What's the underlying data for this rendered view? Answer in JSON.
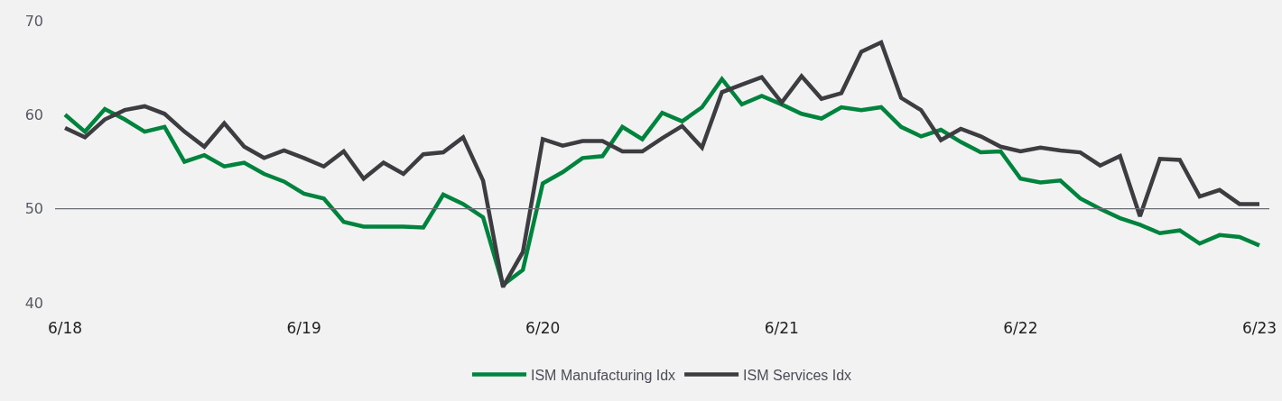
{
  "chart_data": {
    "type": "line",
    "categories": [
      "6/18",
      null,
      null,
      null,
      null,
      null,
      null,
      null,
      null,
      null,
      null,
      null,
      "6/19",
      null,
      null,
      null,
      null,
      null,
      null,
      null,
      null,
      null,
      null,
      null,
      "6/20",
      null,
      null,
      null,
      null,
      null,
      null,
      null,
      null,
      null,
      null,
      null,
      "6/21",
      null,
      null,
      null,
      null,
      null,
      null,
      null,
      null,
      null,
      null,
      null,
      "6/22",
      null,
      null,
      null,
      null,
      null,
      null,
      null,
      null,
      null,
      null,
      null,
      "6/23"
    ],
    "series": [
      {
        "name": "ISM Manufacturing Idx",
        "color": "#00843d",
        "values": [
          60.0,
          58.2,
          60.6,
          59.5,
          58.2,
          58.7,
          55.0,
          55.7,
          54.5,
          54.9,
          53.7,
          52.9,
          51.6,
          51.1,
          48.6,
          48.1,
          48.1,
          48.1,
          48.0,
          51.5,
          50.5,
          49.1,
          41.9,
          43.5,
          52.7,
          53.9,
          55.4,
          55.6,
          58.7,
          57.4,
          60.2,
          59.3,
          60.8,
          63.8,
          61.1,
          62.0,
          61.1,
          60.1,
          59.6,
          60.8,
          60.5,
          60.8,
          58.7,
          57.7,
          58.4,
          57.1,
          56.0,
          56.1,
          53.2,
          52.8,
          53.0,
          51.1,
          50.0,
          49.0,
          48.3,
          47.4,
          47.7,
          46.3,
          47.2,
          47.0,
          46.1
        ]
      },
      {
        "name": "ISM Services Idx",
        "color": "#3c3c41",
        "values": [
          58.6,
          57.6,
          59.5,
          60.5,
          60.9,
          60.1,
          58.2,
          56.6,
          59.1,
          56.6,
          55.4,
          56.2,
          55.4,
          54.5,
          56.1,
          53.2,
          54.9,
          53.7,
          55.8,
          56.0,
          57.6,
          53.0,
          41.7,
          45.4,
          57.4,
          56.7,
          57.2,
          57.2,
          56.1,
          56.1,
          57.5,
          58.8,
          56.5,
          62.4,
          63.2,
          64.0,
          61.3,
          64.1,
          61.7,
          62.3,
          66.7,
          67.7,
          61.8,
          60.5,
          57.3,
          58.5,
          57.7,
          56.6,
          56.1,
          56.5,
          56.2,
          56.0,
          54.6,
          55.6,
          49.2,
          55.3,
          55.2,
          51.3,
          52.0,
          50.5,
          50.5
        ]
      }
    ],
    "ylim": [
      40,
      70
    ],
    "yticks": [
      40,
      50,
      60,
      70
    ],
    "grid": false,
    "legend": "bottom",
    "marker": "none",
    "line_style": "solid",
    "ref_lines": [
      {
        "axis": "y",
        "value": 50,
        "color": "#6b6e75"
      }
    ]
  }
}
